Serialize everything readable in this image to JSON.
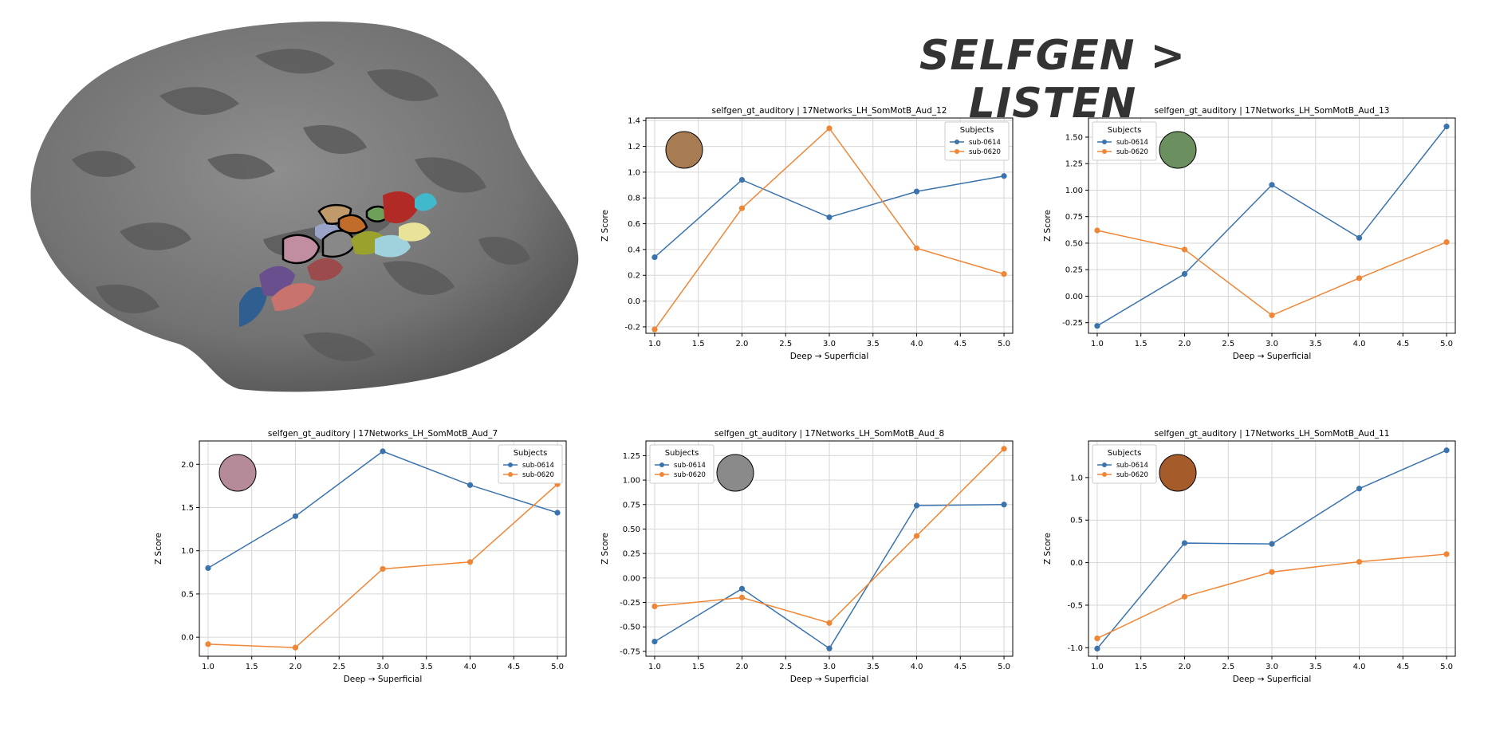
{
  "figure": {
    "title": "SELFGEN > LISTEN"
  },
  "colors": {
    "sub0614": "#3b73ad",
    "sub0620": "#ef8636"
  },
  "chart_data": [
    {
      "id": "aud12",
      "type": "line",
      "title": "selfgen_gt_auditory | 17Networks_LH_SomMotB_Aud_12",
      "xlabel": "Deep → Superficial",
      "ylabel": "Z Score",
      "x": [
        1.0,
        2.0,
        3.0,
        4.0,
        5.0
      ],
      "xlim": [
        0.9,
        5.1
      ],
      "xticks": [
        "1.0",
        "1.5",
        "2.0",
        "2.5",
        "3.0",
        "3.5",
        "4.0",
        "4.5",
        "5.0"
      ],
      "ylim": [
        -0.25,
        1.42
      ],
      "yticks": [
        "-0.2",
        "0.0",
        "0.2",
        "0.4",
        "0.6",
        "0.8",
        "1.0",
        "1.2",
        "1.4"
      ],
      "legend": {
        "title": "Subjects",
        "position": "top-right"
      },
      "swatch_color": "#a87c52",
      "series": [
        {
          "name": "sub-0614",
          "values": [
            0.34,
            0.94,
            0.65,
            0.85,
            0.97
          ]
        },
        {
          "name": "sub-0620",
          "values": [
            -0.22,
            0.72,
            1.34,
            0.41,
            0.21
          ]
        }
      ]
    },
    {
      "id": "aud13",
      "type": "line",
      "title": "selfgen_gt_auditory | 17Networks_LH_SomMotB_Aud_13",
      "xlabel": "Deep → Superficial",
      "ylabel": "Z Score",
      "x": [
        1.0,
        2.0,
        3.0,
        4.0,
        5.0
      ],
      "xlim": [
        0.9,
        5.1
      ],
      "xticks": [
        "1.0",
        "1.5",
        "2.0",
        "2.5",
        "3.0",
        "3.5",
        "4.0",
        "4.5",
        "5.0"
      ],
      "ylim": [
        -0.35,
        1.68
      ],
      "yticks": [
        "-0.25",
        "0.00",
        "0.25",
        "0.50",
        "0.75",
        "1.00",
        "1.25",
        "1.50"
      ],
      "legend": {
        "title": "Subjects",
        "position": "top-left"
      },
      "swatch_color": "#6b8f5e",
      "series": [
        {
          "name": "sub-0614",
          "values": [
            -0.28,
            0.21,
            1.05,
            0.55,
            1.6
          ]
        },
        {
          "name": "sub-0620",
          "values": [
            0.62,
            0.44,
            -0.18,
            0.17,
            0.51
          ]
        }
      ]
    },
    {
      "id": "aud7",
      "type": "line",
      "title": "selfgen_gt_auditory | 17Networks_LH_SomMotB_Aud_7",
      "xlabel": "Deep → Superficial",
      "ylabel": "Z Score",
      "x": [
        1.0,
        2.0,
        3.0,
        4.0,
        5.0
      ],
      "xlim": [
        0.9,
        5.1
      ],
      "xticks": [
        "1.0",
        "1.5",
        "2.0",
        "2.5",
        "3.0",
        "3.5",
        "4.0",
        "4.5",
        "5.0"
      ],
      "ylim": [
        -0.22,
        2.27
      ],
      "yticks": [
        "0.0",
        "0.5",
        "1.0",
        "1.5",
        "2.0"
      ],
      "legend": {
        "title": "Subjects",
        "position": "top-right"
      },
      "swatch_color": "#b58a99",
      "series": [
        {
          "name": "sub-0614",
          "values": [
            0.8,
            1.4,
            2.15,
            1.76,
            1.44
          ]
        },
        {
          "name": "sub-0620",
          "values": [
            -0.08,
            -0.12,
            0.79,
            0.87,
            1.77
          ]
        }
      ]
    },
    {
      "id": "aud8",
      "type": "line",
      "title": "selfgen_gt_auditory | 17Networks_LH_SomMotB_Aud_8",
      "xlabel": "Deep → Superficial",
      "ylabel": "Z Score",
      "x": [
        1.0,
        2.0,
        3.0,
        4.0,
        5.0
      ],
      "xlim": [
        0.9,
        5.1
      ],
      "xticks": [
        "1.0",
        "1.5",
        "2.0",
        "2.5",
        "3.0",
        "3.5",
        "4.0",
        "4.5",
        "5.0"
      ],
      "ylim": [
        -0.8,
        1.4
      ],
      "yticks": [
        "-0.75",
        "-0.50",
        "-0.25",
        "0.00",
        "0.25",
        "0.50",
        "0.75",
        "1.00",
        "1.25"
      ],
      "legend": {
        "title": "Subjects",
        "position": "top-left"
      },
      "swatch_color": "#8a8a8a",
      "series": [
        {
          "name": "sub-0614",
          "values": [
            -0.65,
            -0.11,
            -0.72,
            0.74,
            0.75
          ]
        },
        {
          "name": "sub-0620",
          "values": [
            -0.29,
            -0.2,
            -0.46,
            0.43,
            1.32
          ]
        }
      ]
    },
    {
      "id": "aud11",
      "type": "line",
      "title": "selfgen_gt_auditory | 17Networks_LH_SomMotB_Aud_11",
      "xlabel": "Deep → Superficial",
      "ylabel": "Z Score",
      "x": [
        1.0,
        2.0,
        3.0,
        4.0,
        5.0
      ],
      "xlim": [
        0.9,
        5.1
      ],
      "xticks": [
        "1.0",
        "1.5",
        "2.0",
        "2.5",
        "3.0",
        "3.5",
        "4.0",
        "4.5",
        "5.0"
      ],
      "ylim": [
        -1.1,
        1.43
      ],
      "yticks": [
        "-1.0",
        "-0.5",
        "0.0",
        "0.5",
        "1.0"
      ],
      "legend": {
        "title": "Subjects",
        "position": "top-left"
      },
      "swatch_color": "#a55b2a",
      "series": [
        {
          "name": "sub-0614",
          "values": [
            -1.01,
            0.23,
            0.22,
            0.87,
            1.32
          ]
        },
        {
          "name": "sub-0620",
          "values": [
            -0.89,
            -0.4,
            -0.11,
            0.01,
            0.1
          ]
        }
      ]
    }
  ]
}
